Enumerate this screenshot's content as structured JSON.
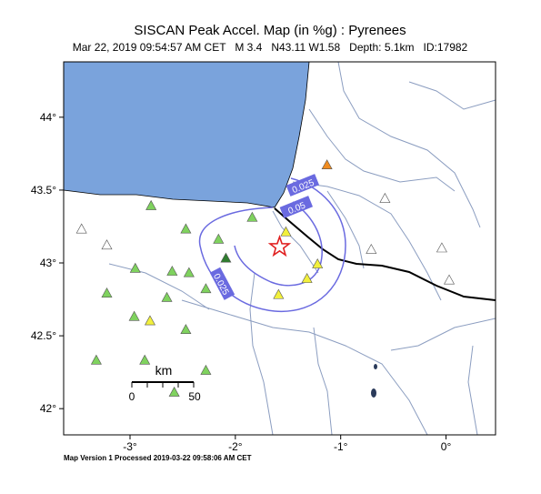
{
  "header": {
    "title": "SISCAN Peak Accel. Map (in %g) : Pyrenees",
    "subtitle": "Mar 22, 2019 09:54:57 AM CET   M 3.4   N43.11 W1.58   Depth: 5.1km   ID:17982"
  },
  "map": {
    "xlim": [
      -3.63,
      0.47
    ],
    "ylim": [
      41.82,
      44.38
    ],
    "xticks": [
      {
        "value": -3,
        "label": "-3°"
      },
      {
        "value": -2,
        "label": "-2°"
      },
      {
        "value": -1,
        "label": "-1°"
      },
      {
        "value": 0,
        "label": "0°"
      }
    ],
    "yticks": [
      {
        "value": 44,
        "label": "44°"
      },
      {
        "value": 43.5,
        "label": "43.5°"
      },
      {
        "value": 43,
        "label": "43°"
      },
      {
        "value": 42.5,
        "label": "42.5°"
      },
      {
        "value": 42,
        "label": "42°"
      }
    ],
    "epicenter": {
      "lon": -1.58,
      "lat": 43.11,
      "color": "#e02020"
    },
    "stations": [
      {
        "lon": -1.13,
        "lat": 43.67,
        "color": "#f08c20"
      },
      {
        "lon": -0.58,
        "lat": 43.44,
        "color": "#ffffff"
      },
      {
        "lon": -3.46,
        "lat": 43.23,
        "color": "#ffffff"
      },
      {
        "lon": -3.22,
        "lat": 43.12,
        "color": "#ffffff"
      },
      {
        "lon": -2.8,
        "lat": 43.39,
        "color": "#7fd25e"
      },
      {
        "lon": -2.47,
        "lat": 43.23,
        "color": "#7fd25e"
      },
      {
        "lon": -2.16,
        "lat": 43.16,
        "color": "#7fd25e"
      },
      {
        "lon": -1.84,
        "lat": 43.31,
        "color": "#7fd25e"
      },
      {
        "lon": -1.52,
        "lat": 43.21,
        "color": "#f2f03c"
      },
      {
        "lon": -0.71,
        "lat": 43.09,
        "color": "#ffffff"
      },
      {
        "lon": -0.04,
        "lat": 43.1,
        "color": "#ffffff"
      },
      {
        "lon": 0.03,
        "lat": 42.88,
        "color": "#ffffff"
      },
      {
        "lon": -2.95,
        "lat": 42.96,
        "color": "#7fd25e"
      },
      {
        "lon": -2.6,
        "lat": 42.94,
        "color": "#7fd25e"
      },
      {
        "lon": -2.44,
        "lat": 42.93,
        "color": "#7fd25e"
      },
      {
        "lon": -2.09,
        "lat": 43.03,
        "color": "#2f7d2f"
      },
      {
        "lon": -1.32,
        "lat": 42.89,
        "color": "#f2f03c"
      },
      {
        "lon": -1.22,
        "lat": 42.99,
        "color": "#f2f03c"
      },
      {
        "lon": -1.59,
        "lat": 42.78,
        "color": "#f2f03c"
      },
      {
        "lon": -3.22,
        "lat": 42.79,
        "color": "#7fd25e"
      },
      {
        "lon": -2.65,
        "lat": 42.76,
        "color": "#7fd25e"
      },
      {
        "lon": -2.28,
        "lat": 42.82,
        "color": "#7fd25e"
      },
      {
        "lon": -2.96,
        "lat": 42.63,
        "color": "#7fd25e"
      },
      {
        "lon": -2.81,
        "lat": 42.6,
        "color": "#f2f03c"
      },
      {
        "lon": -2.47,
        "lat": 42.54,
        "color": "#7fd25e"
      },
      {
        "lon": -3.32,
        "lat": 42.33,
        "color": "#7fd25e"
      },
      {
        "lon": -2.86,
        "lat": 42.33,
        "color": "#7fd25e"
      },
      {
        "lon": -2.28,
        "lat": 42.26,
        "color": "#7fd25e"
      },
      {
        "lon": -2.58,
        "lat": 42.11,
        "color": "#7fd25e"
      }
    ],
    "contour_labels": [
      "0.025",
      "0.05",
      "0.025"
    ],
    "scale_bar": {
      "unit": "km",
      "labels": [
        "0",
        "50"
      ]
    }
  },
  "footer": "Map Version 1 Processed 2019-03-22 09:58:06 AM CET"
}
